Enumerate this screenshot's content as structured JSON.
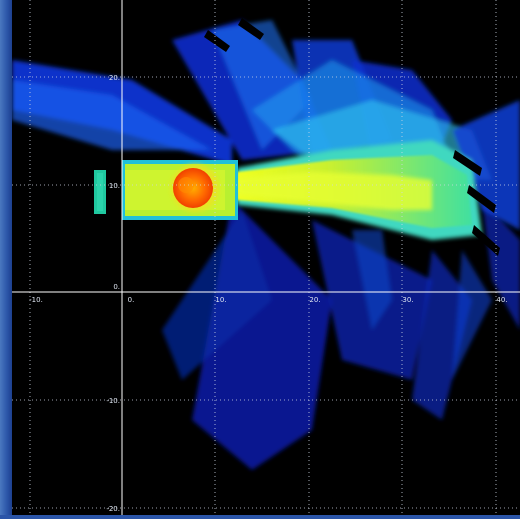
{
  "plot": {
    "x_ticks": [
      "-10.",
      "0.",
      "10.",
      "20.",
      "30.",
      "40."
    ],
    "y_ticks": [
      "20.",
      "10.",
      "0.",
      "-10.",
      "-20."
    ],
    "origin_label": "0.",
    "background_color": "#000000",
    "grid_color": "#cfd6e4",
    "axis_color": "#ffffff"
  },
  "field": {
    "colormap": "jet",
    "peak_color": "#ff6a00",
    "source_block_color": "#c8ee30",
    "emitter_color": "#20c8a0"
  }
}
